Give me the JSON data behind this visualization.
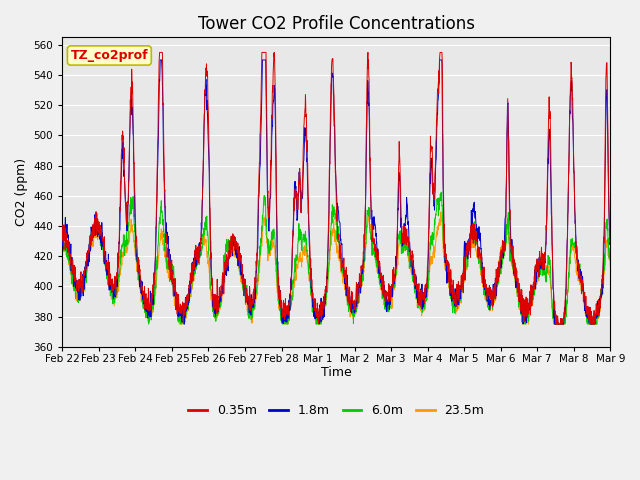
{
  "title": "Tower CO2 Profile Concentrations",
  "xlabel": "Time",
  "ylabel": "CO2 (ppm)",
  "ylim": [
    360,
    565
  ],
  "yticks": [
    360,
    380,
    400,
    420,
    440,
    460,
    480,
    500,
    520,
    540,
    560
  ],
  "xtick_labels": [
    "Feb 22",
    "Feb 23",
    "Feb 24",
    "Feb 25",
    "Feb 26",
    "Feb 27",
    "Feb 28",
    "Mar 1",
    "Mar 2",
    "Mar 3",
    "Mar 4",
    "Mar 5",
    "Mar 6",
    "Mar 7",
    "Mar 8",
    "Mar 9"
  ],
  "colors": {
    "0.35m": "#dd0000",
    "1.8m": "#0000cc",
    "6.0m": "#00cc00",
    "23.5m": "#ff9900"
  },
  "annotation_text": "TZ_co2prof",
  "annotation_bg": "#ffffcc",
  "annotation_border": "#bbbb00",
  "plot_bg": "#e8e8e8",
  "fig_bg": "#f0f0f0",
  "n_points": 2000,
  "title_fontsize": 12
}
